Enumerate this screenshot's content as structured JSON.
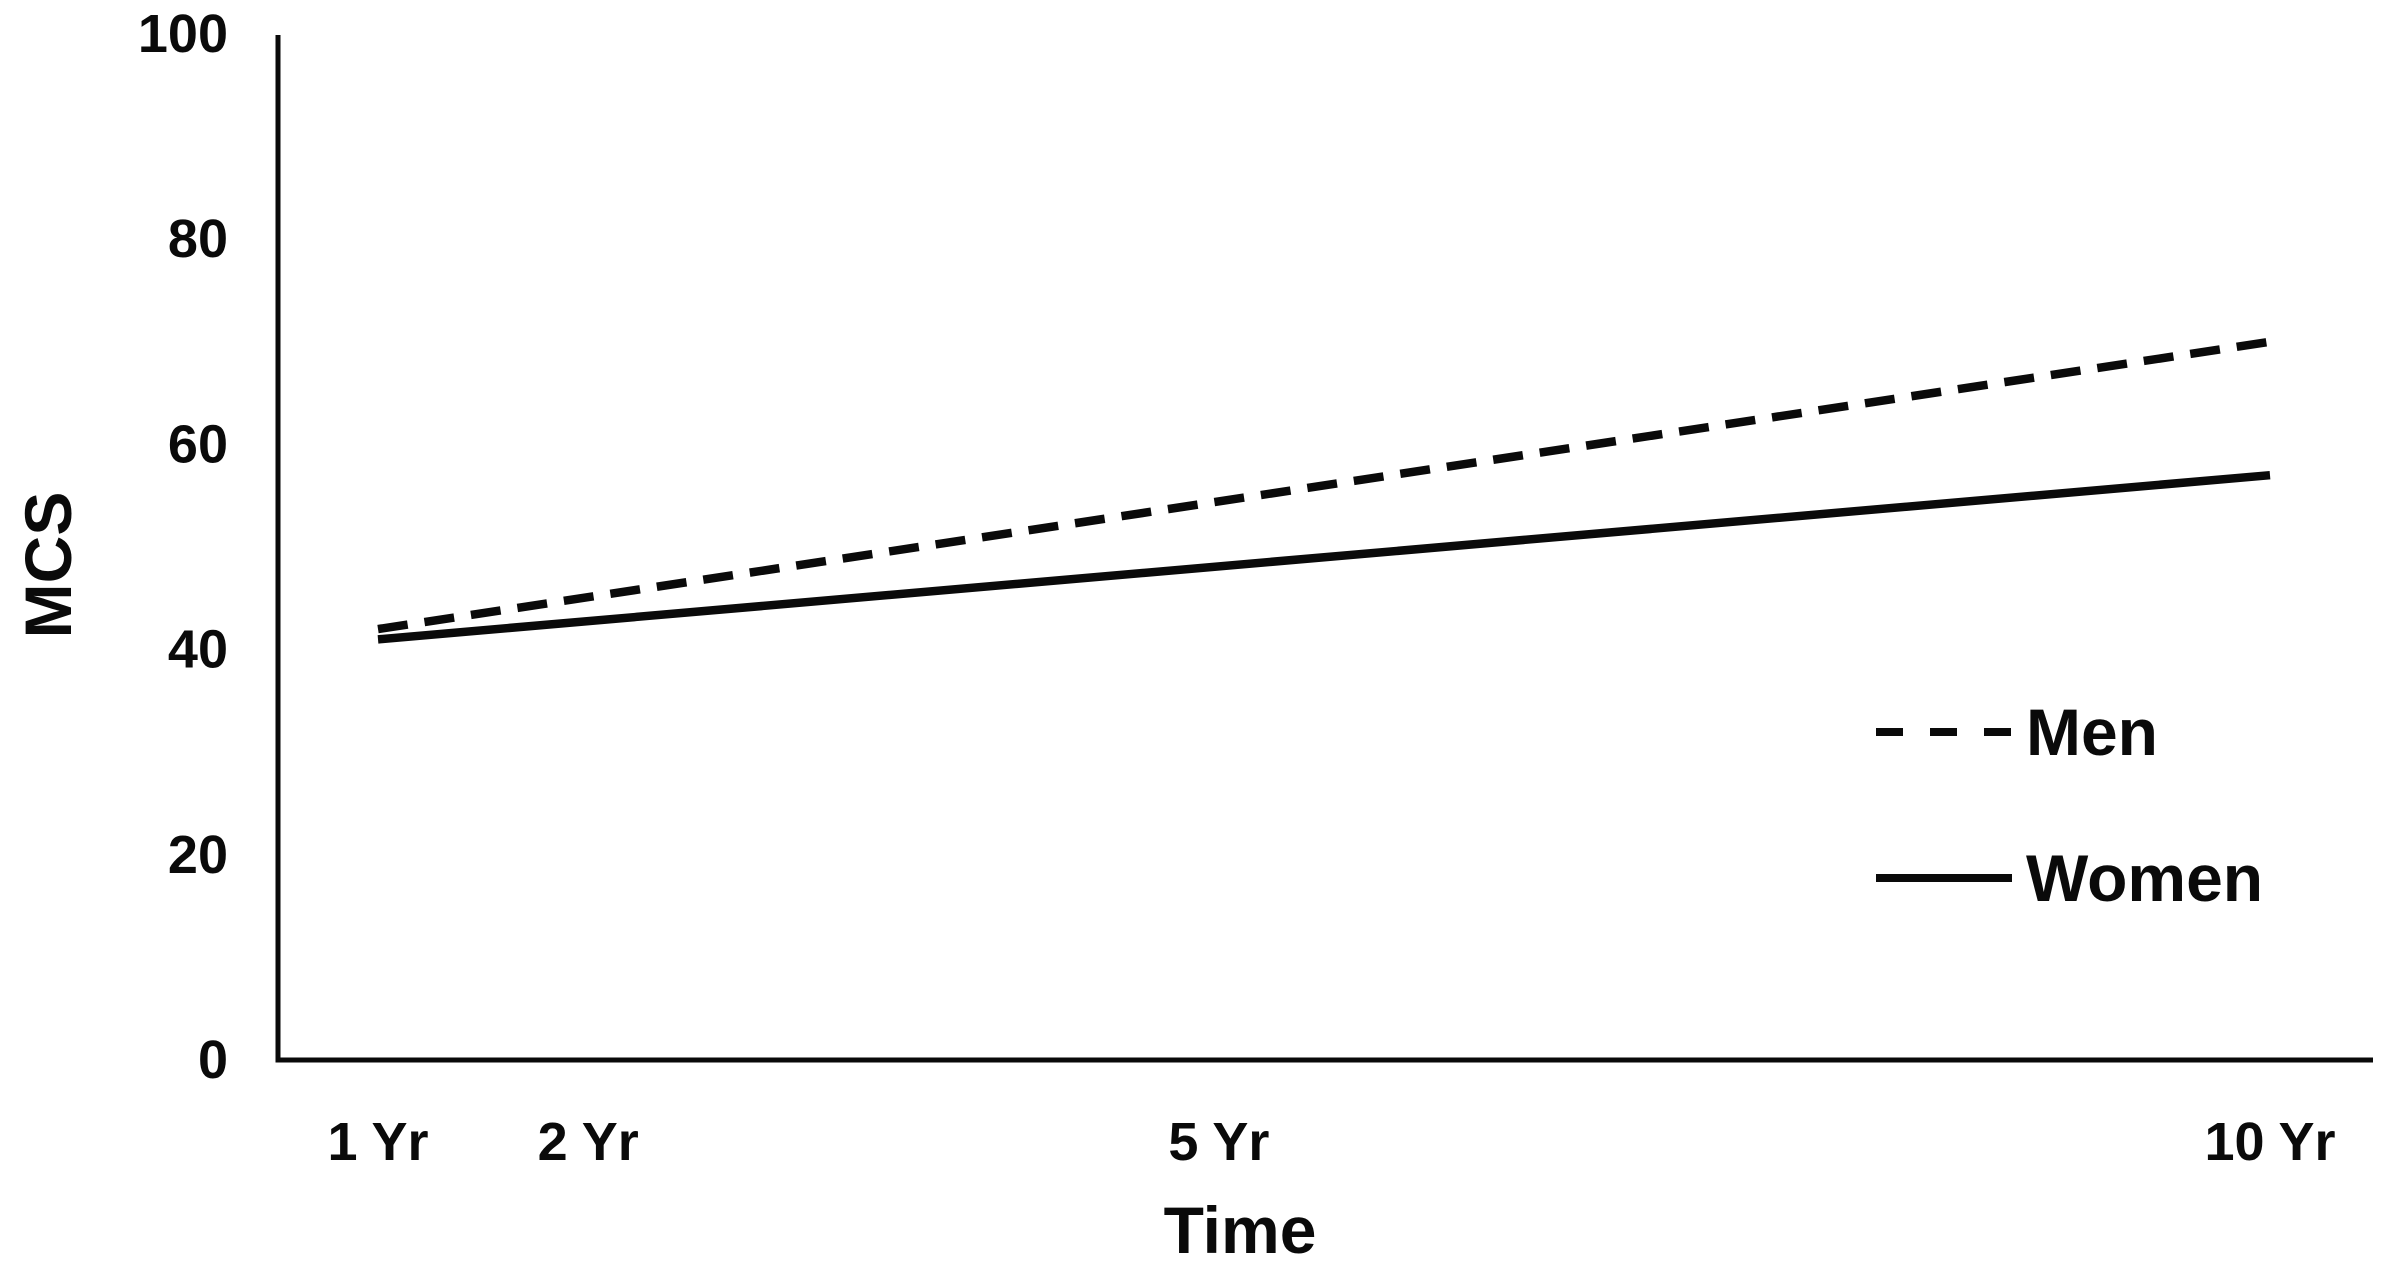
{
  "figure": {
    "background_color": "#ffffff",
    "ink_color": "#0a0a0a"
  },
  "chart_data": {
    "type": "line",
    "title": "",
    "xlabel": "Time",
    "ylabel": "MCS",
    "x_unit": "years",
    "xlim": [
      1,
      10
    ],
    "ylim": [
      0,
      100
    ],
    "grid": false,
    "markers": false,
    "legend_position": "right-middle",
    "xticks": [
      {
        "value": 1,
        "label": "1 Yr"
      },
      {
        "value": 2,
        "label": "2 Yr"
      },
      {
        "value": 5,
        "label": "5 Yr"
      },
      {
        "value": 10,
        "label": "10 Yr"
      }
    ],
    "yticks": [
      0,
      20,
      40,
      60,
      80,
      100
    ],
    "series": [
      {
        "name": "Men",
        "style": "dashed",
        "x": [
          1,
          10
        ],
        "values": [
          42,
          70
        ]
      },
      {
        "name": "Women",
        "style": "solid",
        "x": [
          1,
          10
        ],
        "values": [
          41,
          57
        ]
      }
    ]
  }
}
